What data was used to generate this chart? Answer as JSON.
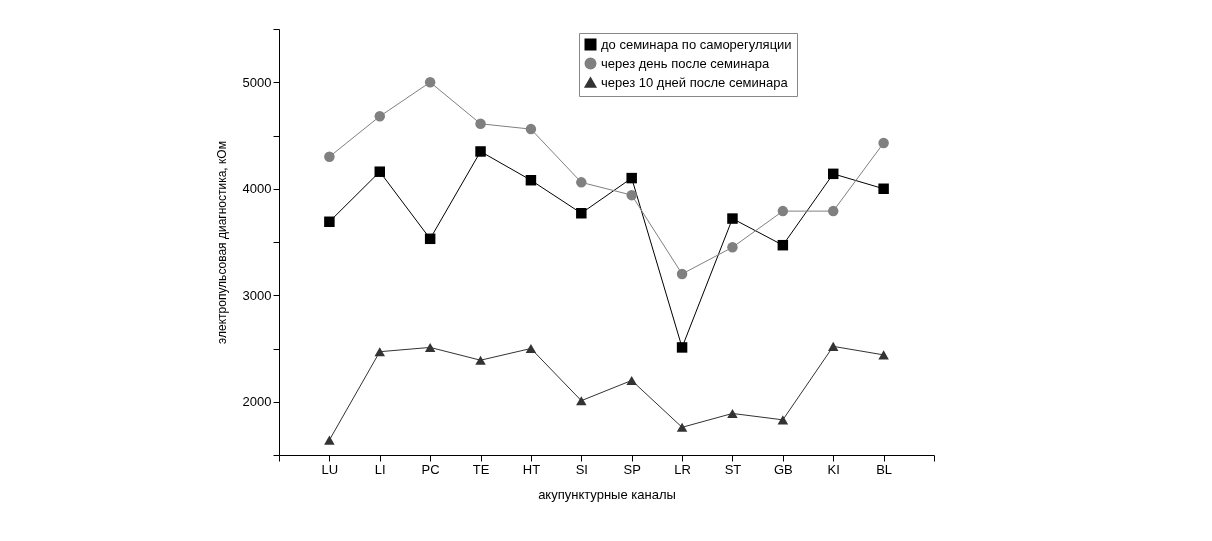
{
  "chart_data": {
    "type": "line",
    "xlabel": "акупунктурные каналы",
    "ylabel": "электропульсовая диагностика, кОм",
    "categories": [
      "LU",
      "LI",
      "PC",
      "TE",
      "HT",
      "SI",
      "SP",
      "LR",
      "ST",
      "GB",
      "KI",
      "BL"
    ],
    "series": [
      {
        "name": "до семинара по саморегуляции",
        "color": "#000000",
        "marker": "square",
        "values": [
          3690,
          4160,
          3530,
          4350,
          4080,
          3770,
          4100,
          2510,
          3720,
          3470,
          4140,
          4000
        ]
      },
      {
        "name": "через день после семинара",
        "color": "#808080",
        "marker": "circle",
        "values": [
          4300,
          4680,
          5000,
          4610,
          4560,
          4060,
          3940,
          3200,
          3450,
          3790,
          3790,
          4430
        ]
      },
      {
        "name": "через 10 дней после семинара",
        "color": "#333333",
        "marker": "triangle",
        "values": [
          1640,
          2470,
          2510,
          2390,
          2500,
          2010,
          2200,
          1760,
          1890,
          1830,
          2520,
          2440
        ]
      }
    ],
    "ylim": [
      1500,
      5500
    ],
    "yticks": [
      {
        "value": 1500,
        "label": null
      },
      2000,
      {
        "value": 2500,
        "label": null
      },
      3000,
      {
        "value": 3500,
        "label": null
      },
      4000,
      {
        "value": 4500,
        "label": null
      },
      5000,
      {
        "value": 5500,
        "label": null
      }
    ],
    "grid": false,
    "legend": "top",
    "line_style": "solid"
  }
}
